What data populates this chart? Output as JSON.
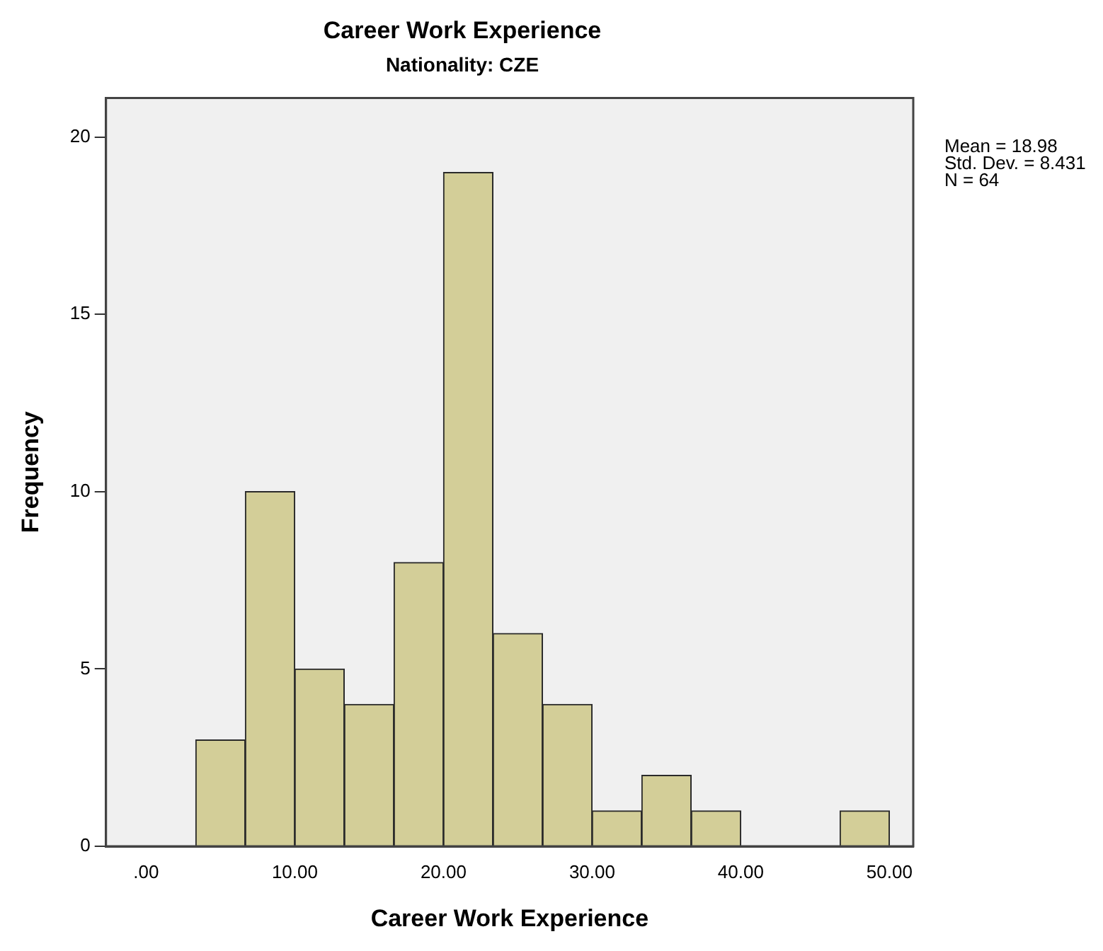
{
  "chart_data": {
    "type": "histogram",
    "title": "Career Work Experience",
    "subtitle": "Nationality: CZE",
    "xlabel": "Career Work Experience",
    "ylabel": "Frequency",
    "bins": [
      3.33,
      6.67,
      10,
      13.33,
      16.67,
      20,
      23.33,
      26.67,
      30,
      33.33,
      36.67,
      40,
      43.33,
      46.67,
      50
    ],
    "values": [
      3,
      10,
      5,
      4,
      8,
      19,
      6,
      4,
      1,
      2,
      1,
      0,
      0,
      1
    ],
    "color": "#d3ce98",
    "xlim": [
      -2.7,
      51.6
    ],
    "xticks": [
      {
        "value": 0,
        "label": ".00"
      },
      {
        "value": 10,
        "label": "10.00"
      },
      {
        "value": 20,
        "label": "20.00"
      },
      {
        "value": 30,
        "label": "30.00"
      },
      {
        "value": 40,
        "label": "40.00"
      },
      {
        "value": 50,
        "label": "50.00"
      }
    ],
    "ylim": [
      0,
      21.1
    ],
    "yticks": [
      0,
      5,
      10,
      15,
      20
    ],
    "grid": false,
    "legend": false,
    "annotations": [
      "Mean = 18.98",
      "Std. Dev. = 8.431",
      "N = 64"
    ]
  }
}
